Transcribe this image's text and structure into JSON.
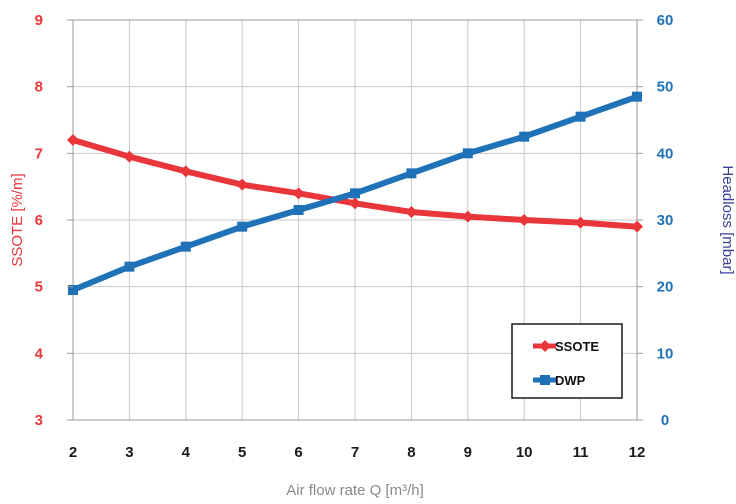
{
  "chart_data": {
    "type": "line",
    "title": "",
    "x": [
      2,
      3,
      4,
      5,
      6,
      7,
      8,
      9,
      10,
      11,
      12
    ],
    "xlabel": "Air flow rate Q [m³/h]",
    "xlim": [
      2,
      12
    ],
    "x_ticks": [
      "2",
      "3",
      "4",
      "5",
      "6",
      "7",
      "8",
      "9",
      "10",
      "11",
      "12"
    ],
    "y_left": {
      "label": "SSOTE [%/m]",
      "lim": [
        3,
        9
      ],
      "ticks": [
        "3",
        "4",
        "5",
        "6",
        "7",
        "8",
        "9"
      ],
      "color": "#e8363a"
    },
    "y_right": {
      "label": "Headloss [mbar]",
      "lim": [
        0,
        60
      ],
      "ticks": [
        "0",
        "10",
        "20",
        "30",
        "40",
        "50",
        "60"
      ],
      "color": "#1f72b8",
      "label_color": "#3a3f9a"
    },
    "series": [
      {
        "name": "SSOTE",
        "axis": "left",
        "color": "#e8363a",
        "marker": "diamond",
        "values": [
          7.2,
          6.95,
          6.73,
          6.53,
          6.4,
          6.25,
          6.12,
          6.05,
          6.0,
          5.96,
          5.9
        ]
      },
      {
        "name": "DWP",
        "axis": "right",
        "color": "#1f72b8",
        "marker": "square",
        "values": [
          19.5,
          23.0,
          26.0,
          29.0,
          31.5,
          34.0,
          37.0,
          40.0,
          42.5,
          45.5,
          48.5
        ]
      }
    ],
    "grid": true,
    "legend_position": "bottom-right"
  }
}
